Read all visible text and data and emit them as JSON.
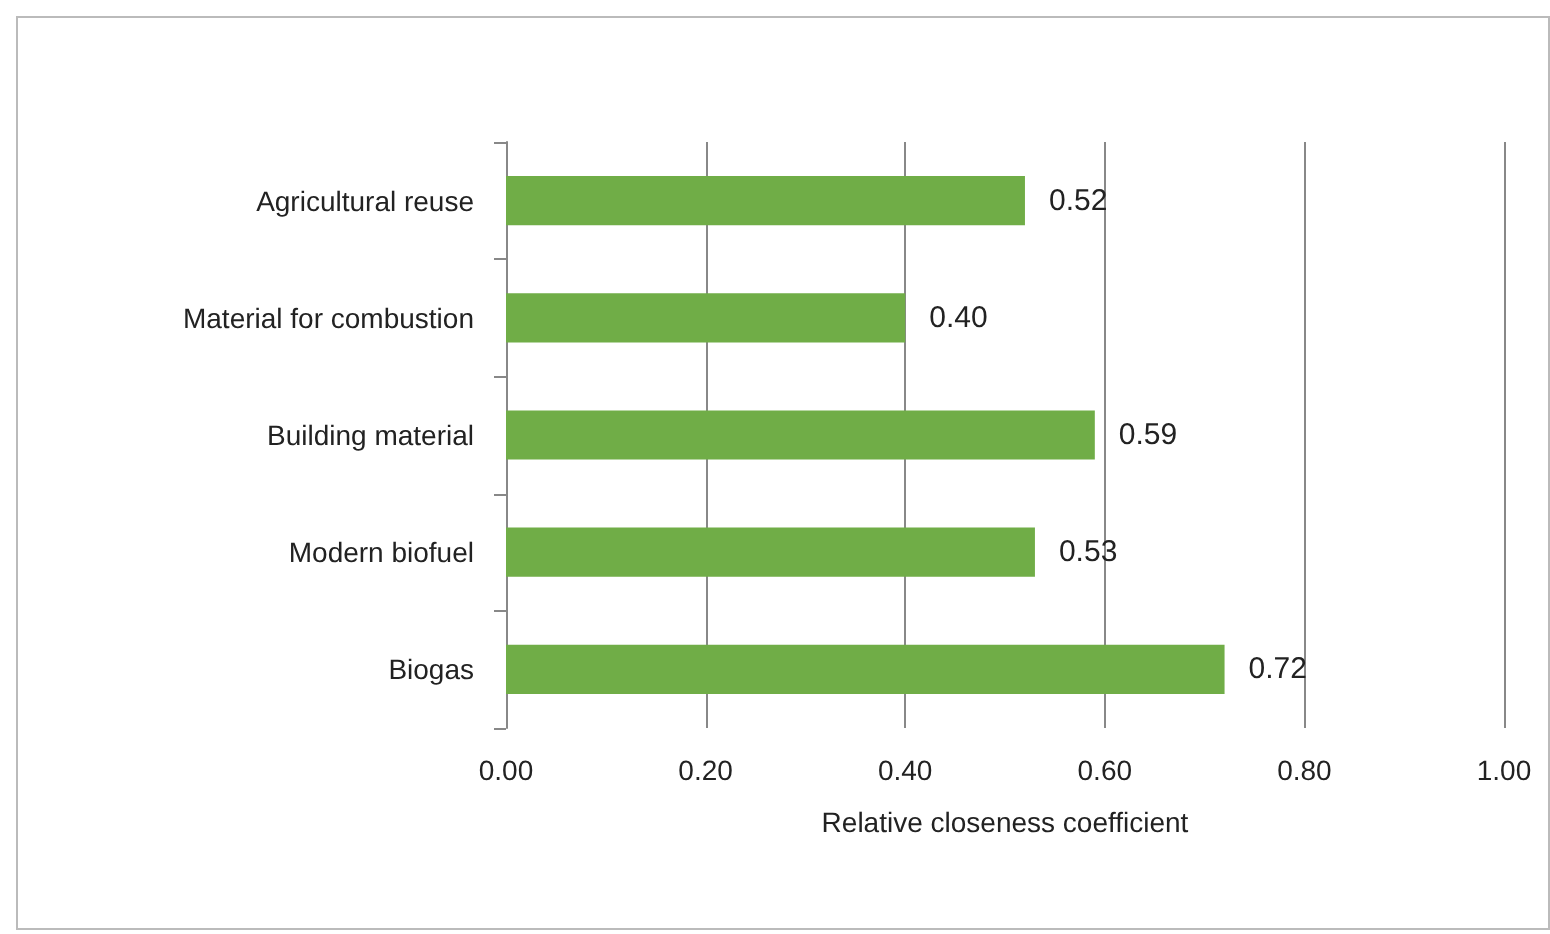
{
  "chart_data": {
    "type": "bar",
    "orientation": "horizontal",
    "xlabel": "Relative closeness coefficient",
    "categories": [
      "Agricultural reuse",
      "Material for combustion",
      "Building material",
      "Modern biofuel",
      "Biogas"
    ],
    "values": [
      0.52,
      0.4,
      0.59,
      0.53,
      0.72
    ],
    "value_labels": [
      "0.52",
      "0.40",
      "0.59",
      "0.53",
      "0.72"
    ],
    "color": "#70ad47",
    "xlim": [
      0,
      1
    ],
    "xticks": [
      {
        "value": 0,
        "label": "0.00"
      },
      {
        "value": 0.2,
        "label": "0.20"
      },
      {
        "value": 0.4,
        "label": "0.40"
      },
      {
        "value": 0.6,
        "label": "0.60"
      },
      {
        "value": 0.8,
        "label": "0.80"
      },
      {
        "value": 1,
        "label": "1.00"
      }
    ],
    "grid": "x"
  }
}
